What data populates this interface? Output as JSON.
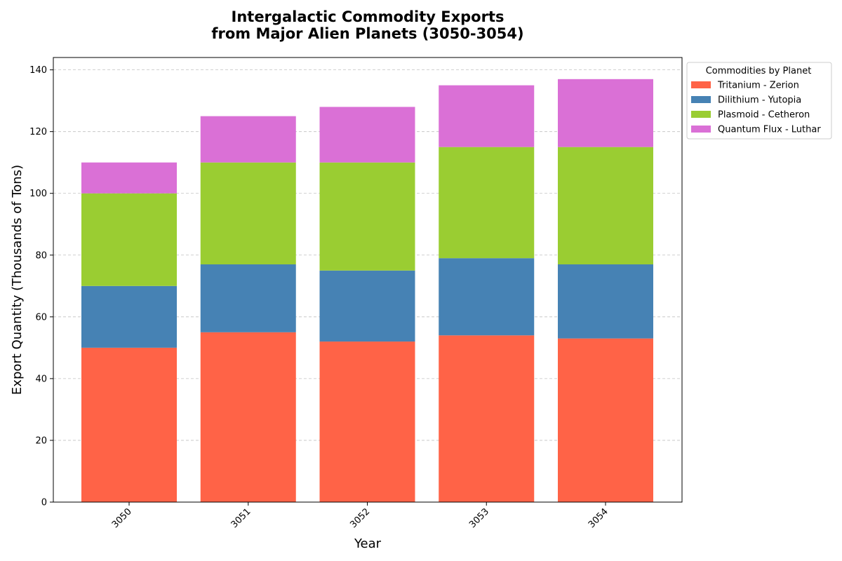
{
  "chart_data": {
    "type": "bar",
    "stacked": true,
    "title_lines": [
      "Intergalactic Commodity Exports",
      "from Major Alien Planets (3050-3054)"
    ],
    "xlabel": "Year",
    "ylabel": "Export Quantity (Thousands of Tons)",
    "categories": [
      "3050",
      "3051",
      "3052",
      "3053",
      "3054"
    ],
    "ylim": [
      0,
      144
    ],
    "yticks": [
      0,
      20,
      40,
      60,
      80,
      100,
      120,
      140
    ],
    "grid": "y-dashed",
    "legend_title": "Commodities by Planet",
    "legend_position": "outside-top-right",
    "series": [
      {
        "name": "Tritanium - Zerion",
        "color": "#ff6347",
        "values": [
          50,
          55,
          52,
          54,
          53
        ]
      },
      {
        "name": "Dilithium - Yutopia",
        "color": "#4682b4",
        "values": [
          20,
          22,
          23,
          25,
          24
        ]
      },
      {
        "name": "Plasmoid - Cetheron",
        "color": "#9acd32",
        "values": [
          30,
          33,
          35,
          36,
          38
        ]
      },
      {
        "name": "Quantum Flux - Luthar",
        "color": "#da70d6",
        "values": [
          10,
          15,
          18,
          20,
          22
        ]
      }
    ]
  }
}
